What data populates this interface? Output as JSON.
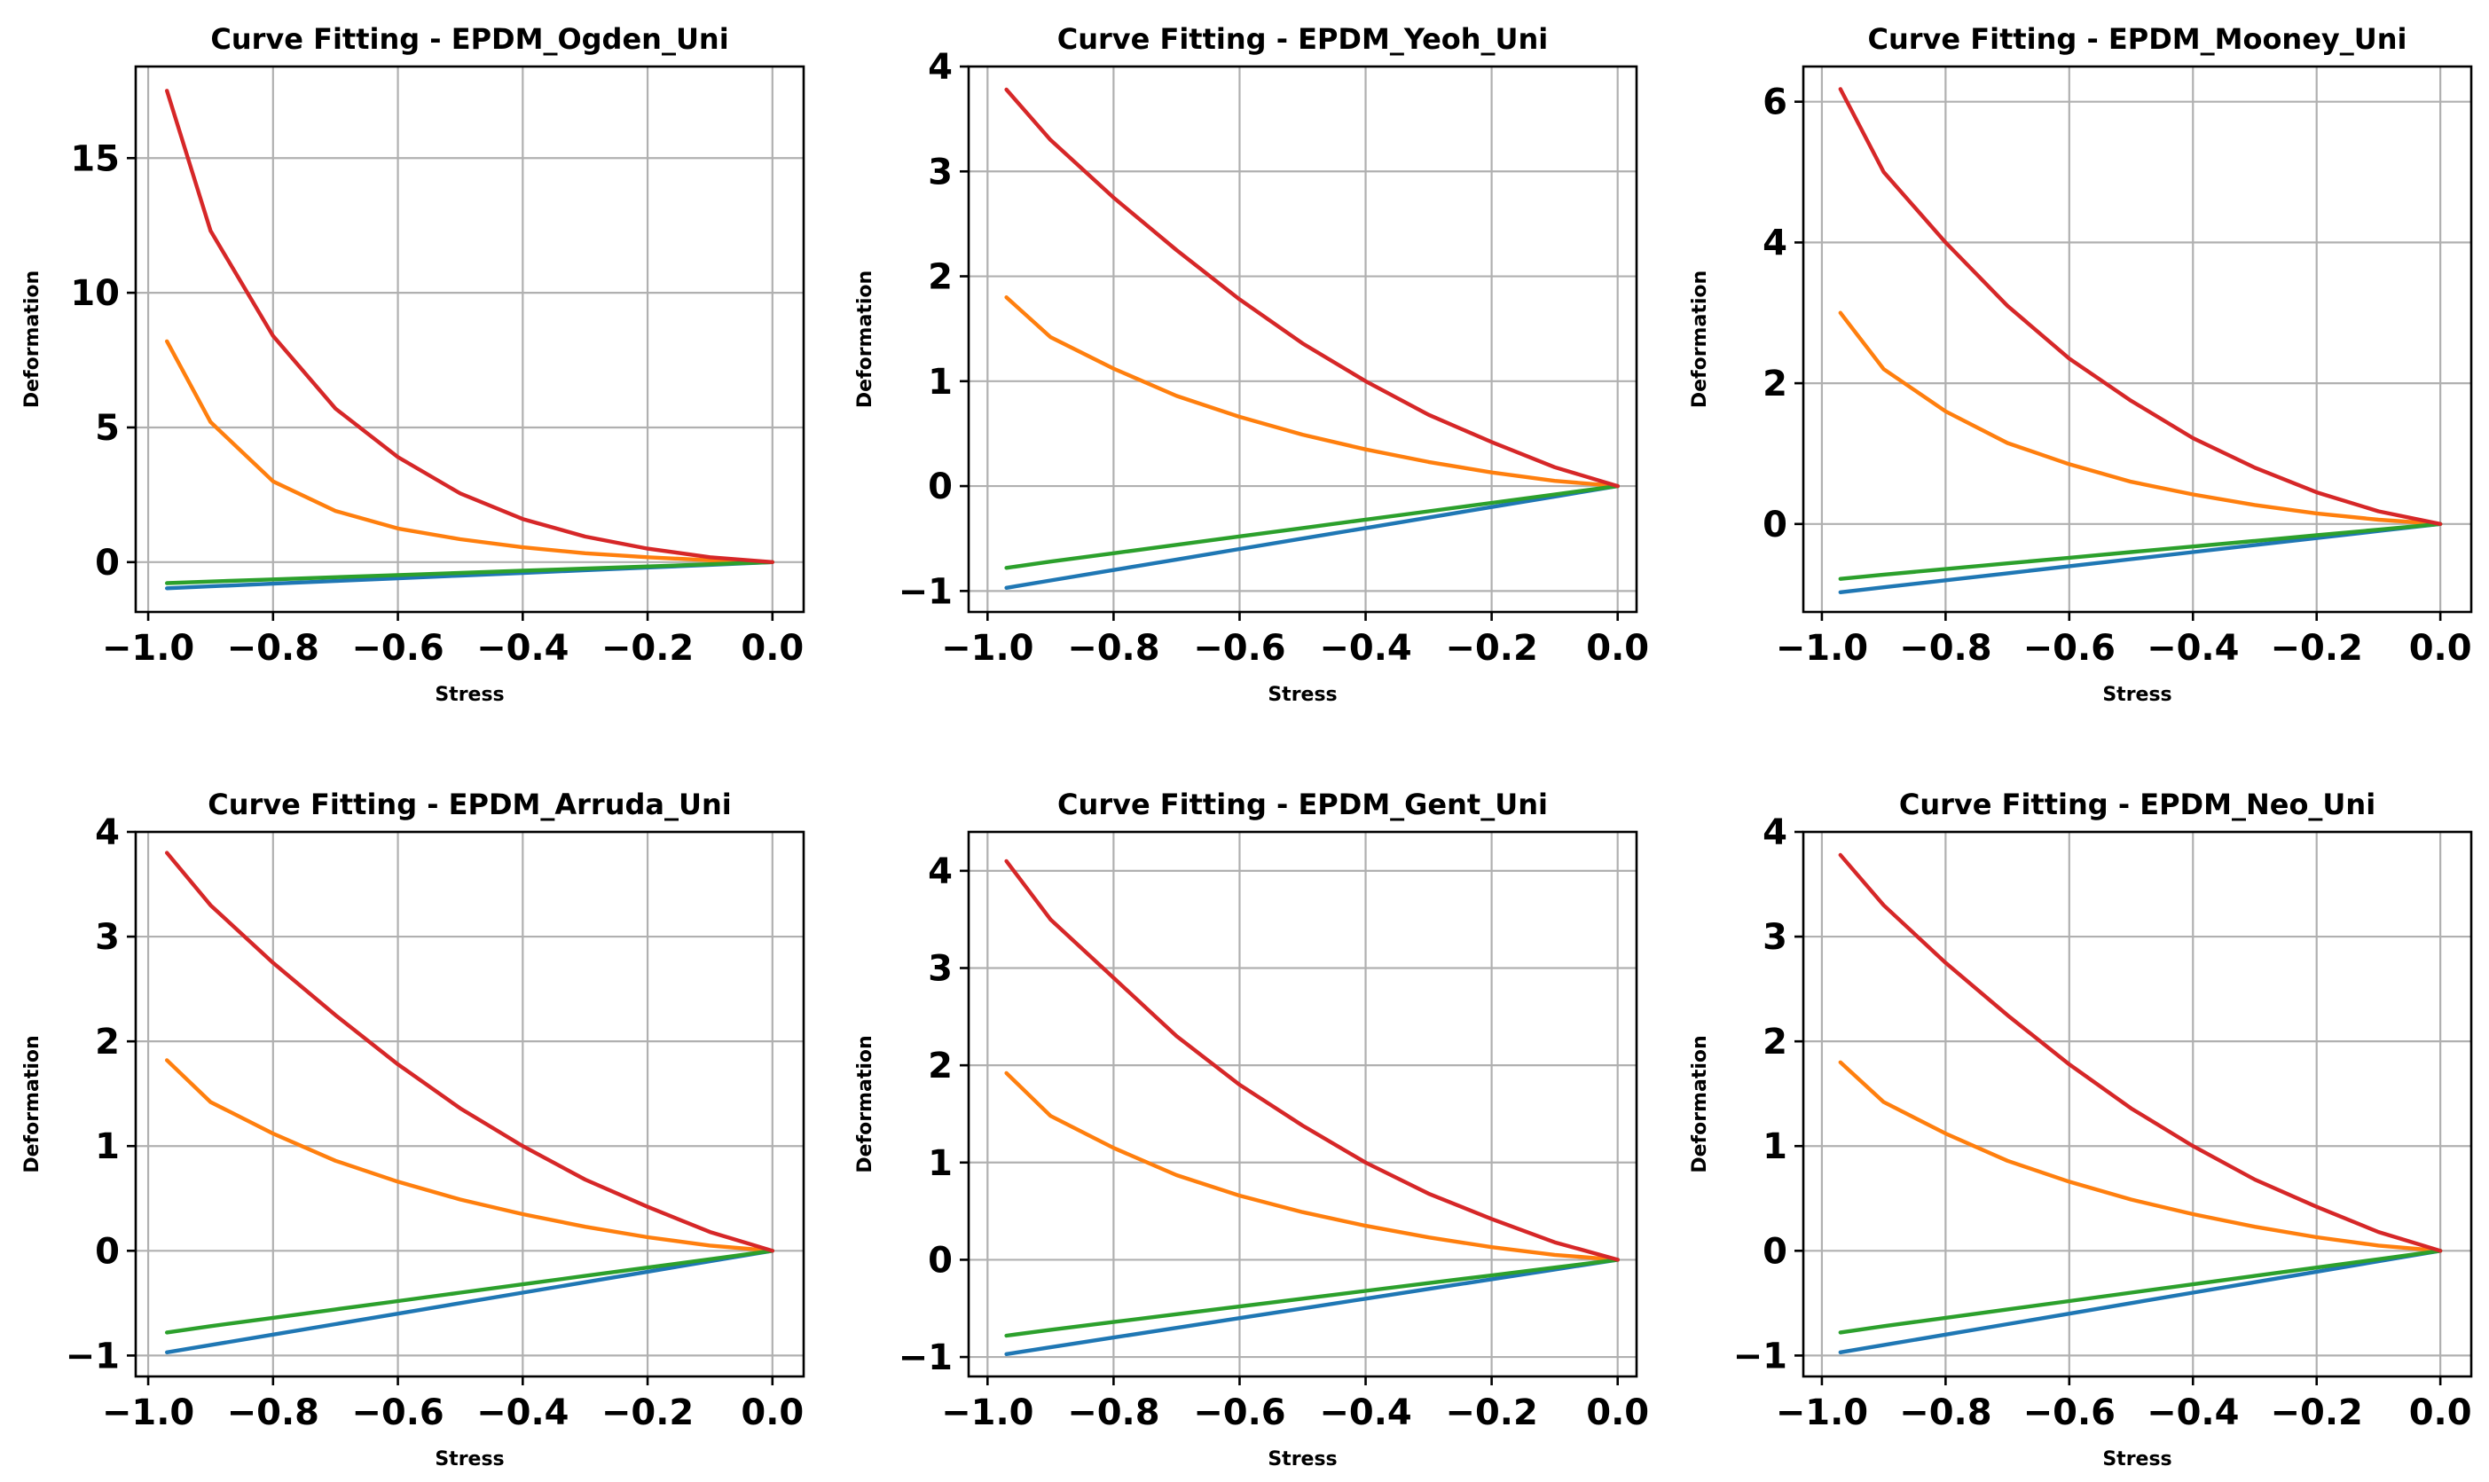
{
  "colors": {
    "blue": "#1f77b4",
    "orange": "#ff7f0e",
    "green": "#2ca02c",
    "red": "#d62728",
    "grid": "#b0b0b0",
    "axes": "#000000"
  },
  "chart_data": [
    {
      "type": "line",
      "title": "Curve Fitting - EPDM_Ogden_Uni",
      "xlabel": "Stress",
      "ylabel": "Deformation",
      "xlim": [
        -1.02,
        0.05
      ],
      "ylim": [
        -1.85,
        18.4
      ],
      "xticks": [
        -1.0,
        -0.8,
        -0.6,
        -0.4,
        -0.2,
        0.0
      ],
      "xtick_labels": [
        "−1.0",
        "−0.8",
        "−0.6",
        "−0.4",
        "−0.2",
        "0.0"
      ],
      "yticks": [
        0,
        5,
        10,
        15
      ],
      "ytick_labels": [
        "0",
        "5",
        "10",
        "15"
      ],
      "grid": true,
      "x": [
        -0.97,
        -0.9,
        -0.8,
        -0.7,
        -0.6,
        -0.5,
        -0.4,
        -0.3,
        -0.2,
        -0.1,
        0.0
      ],
      "series": [
        {
          "color": "blue",
          "values": [
            -0.97,
            -0.9,
            -0.8,
            -0.7,
            -0.6,
            -0.5,
            -0.4,
            -0.3,
            -0.2,
            -0.1,
            0.0
          ]
        },
        {
          "color": "orange",
          "values": [
            8.2,
            5.2,
            3.0,
            1.9,
            1.25,
            0.85,
            0.55,
            0.33,
            0.18,
            0.07,
            0.0
          ]
        },
        {
          "color": "green",
          "values": [
            -0.78,
            -0.72,
            -0.64,
            -0.56,
            -0.48,
            -0.4,
            -0.32,
            -0.24,
            -0.16,
            -0.08,
            0.0
          ]
        },
        {
          "color": "red",
          "values": [
            17.5,
            12.3,
            8.4,
            5.7,
            3.9,
            2.55,
            1.6,
            0.95,
            0.5,
            0.18,
            0.0
          ]
        }
      ]
    },
    {
      "type": "line",
      "title": "Curve Fitting - EPDM_Yeoh_Uni",
      "xlabel": "Stress",
      "ylabel": "Deformation",
      "xlim": [
        -1.03,
        0.03
      ],
      "ylim": [
        -1.2,
        4.0
      ],
      "xticks": [
        -1.0,
        -0.8,
        -0.6,
        -0.4,
        -0.2,
        0.0
      ],
      "xtick_labels": [
        "−1.0",
        "−0.8",
        "−0.6",
        "−0.4",
        "−0.2",
        "0.0"
      ],
      "yticks": [
        -1,
        0,
        1,
        2,
        3,
        4
      ],
      "ytick_labels": [
        "−1",
        "0",
        "1",
        "2",
        "3",
        "4"
      ],
      "grid": true,
      "x": [
        -0.97,
        -0.9,
        -0.8,
        -0.7,
        -0.6,
        -0.5,
        -0.4,
        -0.3,
        -0.2,
        -0.1,
        0.0
      ],
      "series": [
        {
          "color": "blue",
          "values": [
            -0.97,
            -0.9,
            -0.8,
            -0.7,
            -0.6,
            -0.5,
            -0.4,
            -0.3,
            -0.2,
            -0.1,
            0.0
          ]
        },
        {
          "color": "orange",
          "values": [
            1.8,
            1.42,
            1.12,
            0.86,
            0.66,
            0.49,
            0.35,
            0.23,
            0.13,
            0.05,
            0.0
          ]
        },
        {
          "color": "green",
          "values": [
            -0.78,
            -0.72,
            -0.64,
            -0.56,
            -0.48,
            -0.4,
            -0.32,
            -0.24,
            -0.16,
            -0.08,
            0.0
          ]
        },
        {
          "color": "red",
          "values": [
            3.78,
            3.3,
            2.75,
            2.25,
            1.78,
            1.36,
            1.0,
            0.68,
            0.42,
            0.18,
            0.0
          ]
        }
      ]
    },
    {
      "type": "line",
      "title": "Curve Fitting - EPDM_Mooney_Uni",
      "xlabel": "Stress",
      "ylabel": "Deformation",
      "xlim": [
        -1.03,
        0.05
      ],
      "ylim": [
        -1.25,
        6.5
      ],
      "xticks": [
        -1.0,
        -0.8,
        -0.6,
        -0.4,
        -0.2,
        0.0
      ],
      "xtick_labels": [
        "−1.0",
        "−0.8",
        "−0.6",
        "−0.4",
        "−0.2",
        "0.0"
      ],
      "yticks": [
        0,
        2,
        4,
        6
      ],
      "ytick_labels": [
        "0",
        "2",
        "4",
        "6"
      ],
      "grid": true,
      "x": [
        -0.97,
        -0.9,
        -0.8,
        -0.7,
        -0.6,
        -0.5,
        -0.4,
        -0.3,
        -0.2,
        -0.1,
        0.0
      ],
      "series": [
        {
          "color": "blue",
          "values": [
            -0.97,
            -0.9,
            -0.8,
            -0.7,
            -0.6,
            -0.5,
            -0.4,
            -0.3,
            -0.2,
            -0.1,
            0.0
          ]
        },
        {
          "color": "orange",
          "values": [
            3.0,
            2.2,
            1.6,
            1.15,
            0.85,
            0.6,
            0.42,
            0.27,
            0.15,
            0.06,
            0.0
          ]
        },
        {
          "color": "green",
          "values": [
            -0.78,
            -0.72,
            -0.64,
            -0.56,
            -0.48,
            -0.4,
            -0.32,
            -0.24,
            -0.16,
            -0.08,
            0.0
          ]
        },
        {
          "color": "red",
          "values": [
            6.18,
            5.0,
            4.0,
            3.1,
            2.35,
            1.75,
            1.22,
            0.8,
            0.45,
            0.18,
            0.0
          ]
        }
      ]
    },
    {
      "type": "line",
      "title": "Curve Fitting - EPDM_Arruda_Uni",
      "xlabel": "Stress",
      "ylabel": "Deformation",
      "xlim": [
        -1.02,
        0.05
      ],
      "ylim": [
        -1.2,
        4.0
      ],
      "xticks": [
        -1.0,
        -0.8,
        -0.6,
        -0.4,
        -0.2,
        0.0
      ],
      "xtick_labels": [
        "−1.0",
        "−0.8",
        "−0.6",
        "−0.4",
        "−0.2",
        "0.0"
      ],
      "yticks": [
        -1,
        0,
        1,
        2,
        3,
        4
      ],
      "ytick_labels": [
        "−1",
        "0",
        "1",
        "2",
        "3",
        "4"
      ],
      "grid": true,
      "x": [
        -0.97,
        -0.9,
        -0.8,
        -0.7,
        -0.6,
        -0.5,
        -0.4,
        -0.3,
        -0.2,
        -0.1,
        0.0
      ],
      "series": [
        {
          "color": "blue",
          "values": [
            -0.97,
            -0.9,
            -0.8,
            -0.7,
            -0.6,
            -0.5,
            -0.4,
            -0.3,
            -0.2,
            -0.1,
            0.0
          ]
        },
        {
          "color": "orange",
          "values": [
            1.82,
            1.42,
            1.12,
            0.86,
            0.66,
            0.49,
            0.35,
            0.23,
            0.13,
            0.05,
            0.0
          ]
        },
        {
          "color": "green",
          "values": [
            -0.78,
            -0.72,
            -0.64,
            -0.56,
            -0.48,
            -0.4,
            -0.32,
            -0.24,
            -0.16,
            -0.08,
            0.0
          ]
        },
        {
          "color": "red",
          "values": [
            3.8,
            3.3,
            2.75,
            2.25,
            1.78,
            1.36,
            1.0,
            0.68,
            0.42,
            0.18,
            0.0
          ]
        }
      ]
    },
    {
      "type": "line",
      "title": "Curve Fitting - EPDM_Gent_Uni",
      "xlabel": "Stress",
      "ylabel": "Deformation",
      "xlim": [
        -1.03,
        0.03
      ],
      "ylim": [
        -1.2,
        4.4
      ],
      "xticks": [
        -1.0,
        -0.8,
        -0.6,
        -0.4,
        -0.2,
        0.0
      ],
      "xtick_labels": [
        "−1.0",
        "−0.8",
        "−0.6",
        "−0.4",
        "−0.2",
        "0.0"
      ],
      "yticks": [
        -1,
        0,
        1,
        2,
        3,
        4
      ],
      "ytick_labels": [
        "−1",
        "0",
        "1",
        "2",
        "3",
        "4"
      ],
      "grid": true,
      "x": [
        -0.97,
        -0.9,
        -0.8,
        -0.7,
        -0.6,
        -0.5,
        -0.4,
        -0.3,
        -0.2,
        -0.1,
        0.0
      ],
      "series": [
        {
          "color": "blue",
          "values": [
            -0.97,
            -0.9,
            -0.8,
            -0.7,
            -0.6,
            -0.5,
            -0.4,
            -0.3,
            -0.2,
            -0.1,
            0.0
          ]
        },
        {
          "color": "orange",
          "values": [
            1.92,
            1.48,
            1.15,
            0.87,
            0.66,
            0.49,
            0.35,
            0.23,
            0.13,
            0.05,
            0.0
          ]
        },
        {
          "color": "green",
          "values": [
            -0.78,
            -0.72,
            -0.64,
            -0.56,
            -0.48,
            -0.4,
            -0.32,
            -0.24,
            -0.16,
            -0.08,
            0.0
          ]
        },
        {
          "color": "red",
          "values": [
            4.1,
            3.5,
            2.9,
            2.3,
            1.8,
            1.38,
            1.0,
            0.68,
            0.42,
            0.18,
            0.0
          ]
        }
      ]
    },
    {
      "type": "line",
      "title": "Curve Fitting - EPDM_Neo_Uni",
      "xlabel": "Stress",
      "ylabel": "Deformation",
      "xlim": [
        -1.03,
        0.05
      ],
      "ylim": [
        -1.2,
        4.0
      ],
      "xticks": [
        -1.0,
        -0.8,
        -0.6,
        -0.4,
        -0.2,
        0.0
      ],
      "xtick_labels": [
        "−1.0",
        "−0.8",
        "−0.6",
        "−0.4",
        "−0.2",
        "0.0"
      ],
      "yticks": [
        -1,
        0,
        1,
        2,
        3,
        4
      ],
      "ytick_labels": [
        "−1",
        "0",
        "1",
        "2",
        "3",
        "4"
      ],
      "grid": true,
      "x": [
        -0.97,
        -0.9,
        -0.8,
        -0.7,
        -0.6,
        -0.5,
        -0.4,
        -0.3,
        -0.2,
        -0.1,
        0.0
      ],
      "series": [
        {
          "color": "blue",
          "values": [
            -0.97,
            -0.9,
            -0.8,
            -0.7,
            -0.6,
            -0.5,
            -0.4,
            -0.3,
            -0.2,
            -0.1,
            0.0
          ]
        },
        {
          "color": "orange",
          "values": [
            1.8,
            1.42,
            1.12,
            0.86,
            0.66,
            0.49,
            0.35,
            0.23,
            0.13,
            0.05,
            0.0
          ]
        },
        {
          "color": "green",
          "values": [
            -0.78,
            -0.72,
            -0.64,
            -0.56,
            -0.48,
            -0.4,
            -0.32,
            -0.24,
            -0.16,
            -0.08,
            0.0
          ]
        },
        {
          "color": "red",
          "values": [
            3.78,
            3.3,
            2.75,
            2.25,
            1.78,
            1.36,
            1.0,
            0.68,
            0.42,
            0.18,
            0.0
          ]
        }
      ]
    }
  ]
}
